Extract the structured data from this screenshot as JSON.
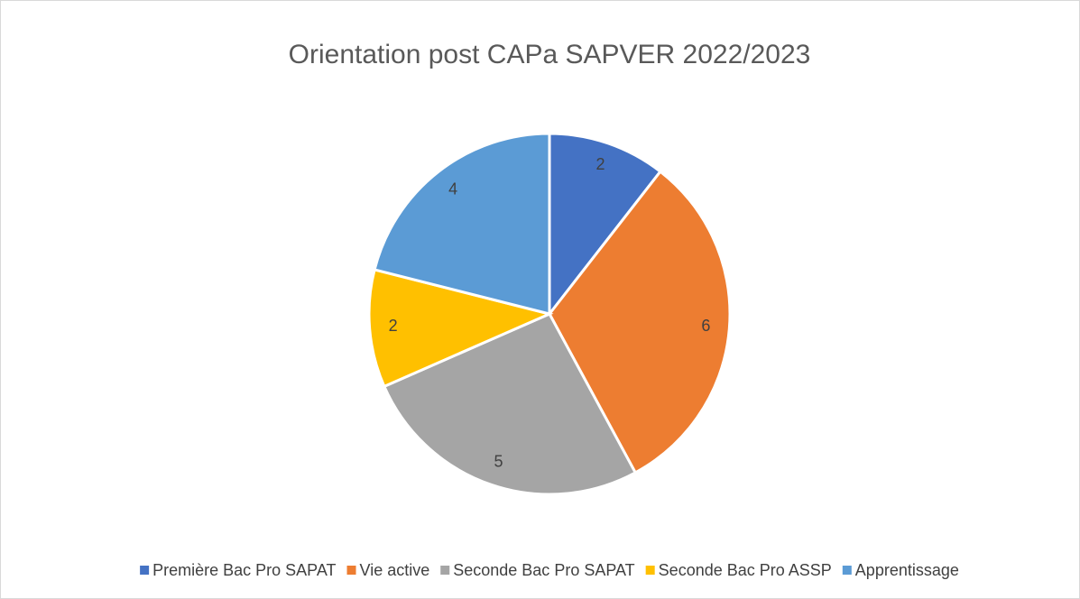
{
  "chart_data": {
    "type": "pie",
    "title": "Orientation post CAPa SAPVER 2022/2023",
    "categories": [
      "Première Bac Pro SAPAT",
      "Vie active",
      "Seconde Bac Pro SAPAT",
      "Seconde Bac Pro ASSP",
      "Apprentissage"
    ],
    "values": [
      2,
      6,
      5,
      2,
      4
    ],
    "colors": [
      "#4472c4",
      "#ed7d31",
      "#a5a5a5",
      "#ffc000",
      "#5b9bd5"
    ],
    "legend": "bottom"
  }
}
